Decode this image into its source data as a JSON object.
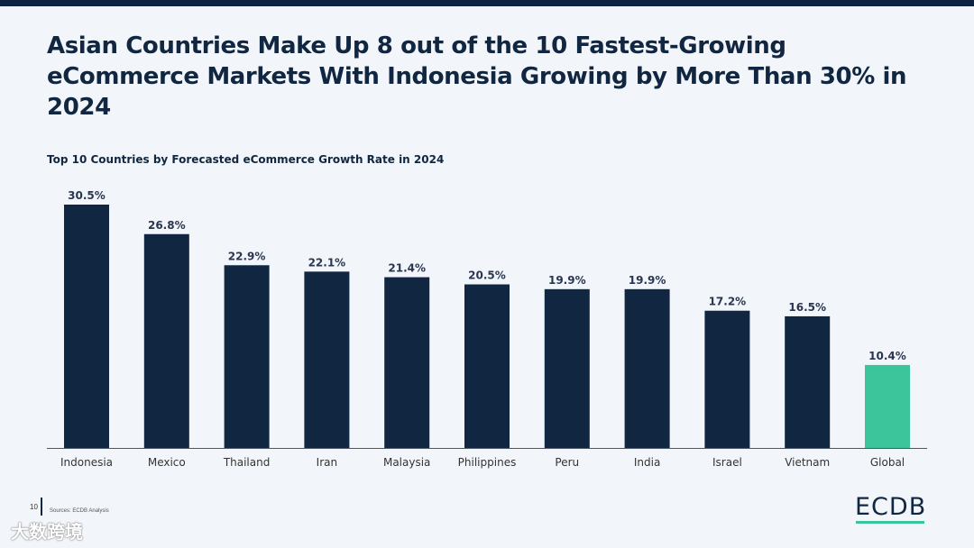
{
  "title": "Asian Countries Make Up 8 out of the 10 Fastest-Growing eCommerce Markets With Indonesia Growing by More Than 30% in 2024",
  "footer": {
    "page_number": "10",
    "sources": "Sources:   ECDB Analysis"
  },
  "brand": {
    "logo_text": "ECDB"
  },
  "watermark": "大数跨境",
  "colors": {
    "background": "#f2f6fa",
    "bar": "#112640",
    "highlight": "#3cc49a",
    "text": "#112640"
  },
  "chart_data": {
    "type": "bar",
    "title": "Top 10 Countries by Forecasted eCommerce Growth Rate in 2024",
    "categories": [
      "Indonesia",
      "Mexico",
      "Thailand",
      "Iran",
      "Malaysia",
      "Philippines",
      "Peru",
      "India",
      "Israel",
      "Vietnam",
      "Global"
    ],
    "values": [
      30.5,
      26.8,
      22.9,
      22.1,
      21.4,
      20.5,
      19.9,
      19.9,
      17.2,
      16.5,
      10.4
    ],
    "labels": [
      "30.5%",
      "26.8%",
      "22.9%",
      "22.1%",
      "21.4%",
      "20.5%",
      "19.9%",
      "19.9%",
      "17.2%",
      "16.5%",
      "10.4%"
    ],
    "highlight_category": "Global",
    "ylim": [
      0,
      30.5
    ],
    "xlabel": "",
    "ylabel": ""
  }
}
